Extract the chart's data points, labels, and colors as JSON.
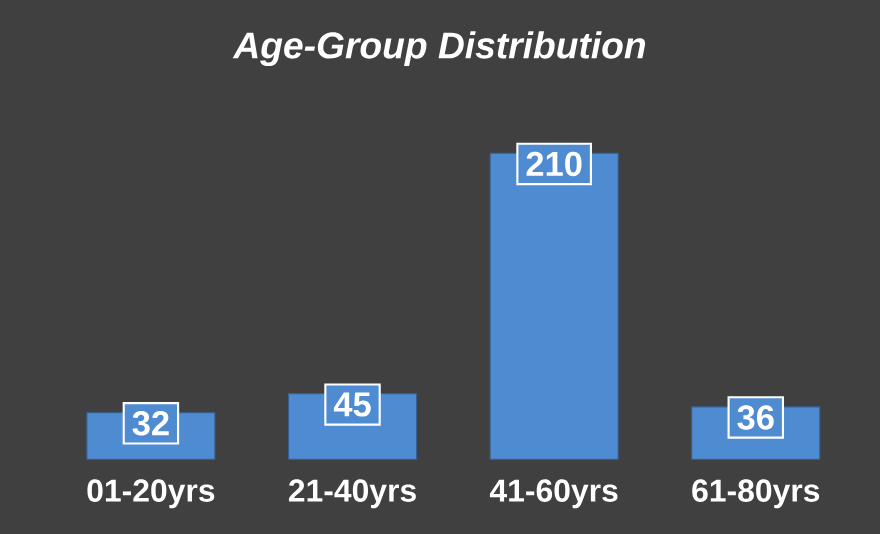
{
  "chart_data": {
    "type": "bar",
    "title": "*Age-Group Distribution*",
    "categories": [
      "01-20yrs",
      "21-40yrs",
      "41-60yrs",
      "61-80yrs"
    ],
    "values": [
      32,
      45,
      210,
      36
    ],
    "color": "#4f8bd0",
    "data_labels": true
  }
}
